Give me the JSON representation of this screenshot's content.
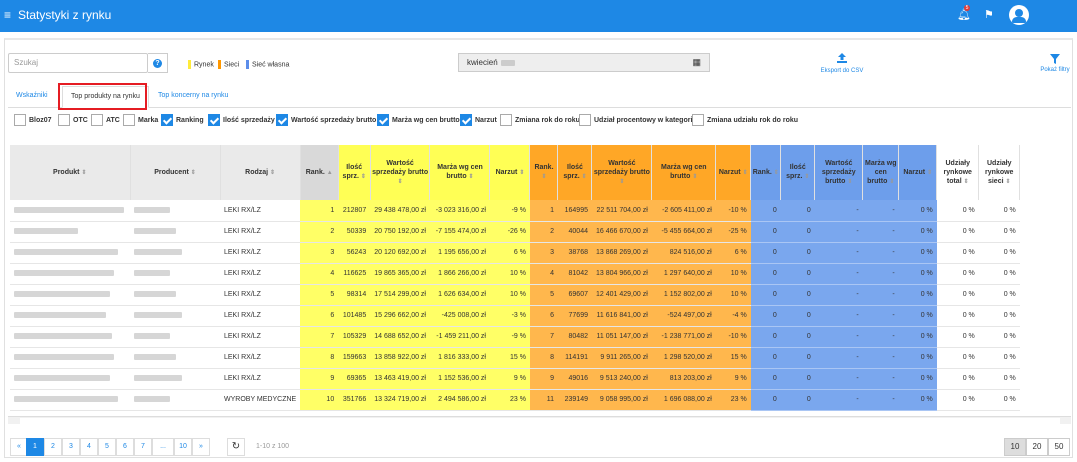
{
  "app": {
    "title": "Statystyki z rynku",
    "notif_count": "5"
  },
  "search": {
    "placeholder": "Szukaj",
    "help": "?"
  },
  "legend": [
    {
      "label": "Rynek",
      "color": "#ffeb3b"
    },
    {
      "label": "Sieci",
      "color": "#ff9800"
    },
    {
      "label": "Sieć własna",
      "color": "#5c8dea"
    }
  ],
  "date": {
    "value": "kwiecień"
  },
  "export": {
    "label": "Eksport do CSV"
  },
  "filter": {
    "label": "Pokaż filtry"
  },
  "tabs": [
    "Wskaźniki",
    "Top produkty na rynku",
    "Top koncerny na rynku"
  ],
  "checkboxes": [
    {
      "label": "Bloz07",
      "checked": false
    },
    {
      "label": "OTC",
      "checked": false
    },
    {
      "label": "ATC",
      "checked": false
    },
    {
      "label": "Marka",
      "checked": false
    },
    {
      "label": "Ranking",
      "checked": true
    },
    {
      "label": "Ilość sprzedaży",
      "checked": true
    },
    {
      "label": "Wartość sprzedaży brutto",
      "checked": true
    },
    {
      "label": "Marża wg cen brutto",
      "checked": true
    },
    {
      "label": "Narzut",
      "checked": true
    },
    {
      "label": "Zmiana rok do roku",
      "checked": false
    },
    {
      "label": "Udział procentowy w kategorii",
      "checked": false
    },
    {
      "label": "Zmiana udziału rok do roku",
      "checked": false
    }
  ],
  "table": {
    "headers": {
      "produkt": "Produkt",
      "producent": "Producent",
      "rodzaj": "Rodzaj",
      "rank": "Rank.",
      "ilosc": "Ilość sprz.",
      "wartosc": "Wartość sprzedaży brutto",
      "marza": "Marża wg cen brutto",
      "narzut": "Narzut",
      "marza_short": "Marża wg cen brutto",
      "udzial_total": "Udziały rynkowe total",
      "udzial_sieci": "Udziały rynkowe sieci"
    },
    "rows": [
      {
        "rodzaj": "LEKI RX/LZ",
        "r_rank": "1",
        "r_ilosc": "212807",
        "r_wart": "29 438 478,00 zł",
        "r_marza": "-3 023 316,00 zł",
        "r_narzut": "-9 %",
        "s_rank": "1",
        "s_ilosc": "164995",
        "s_wart": "22 511 704,00 zł",
        "s_marza": "-2 605 411,00 zł",
        "s_narzut": "-10 %",
        "w_rank": "0",
        "w_ilosc": "0",
        "w_wart": "-",
        "w_marza": "-",
        "w_narzut": "0 %",
        "u_total": "0 %",
        "u_sieci": "0 %"
      },
      {
        "rodzaj": "LEKI RX/LZ",
        "r_rank": "2",
        "r_ilosc": "50339",
        "r_wart": "20 750 192,00 zł",
        "r_marza": "-7 155 474,00 zł",
        "r_narzut": "-26 %",
        "s_rank": "2",
        "s_ilosc": "40044",
        "s_wart": "16 466 670,00 zł",
        "s_marza": "-5 455 664,00 zł",
        "s_narzut": "-25 %",
        "w_rank": "0",
        "w_ilosc": "0",
        "w_wart": "-",
        "w_marza": "-",
        "w_narzut": "0 %",
        "u_total": "0 %",
        "u_sieci": "0 %"
      },
      {
        "rodzaj": "LEKI RX/LZ",
        "r_rank": "3",
        "r_ilosc": "56243",
        "r_wart": "20 120 692,00 zł",
        "r_marza": "1 195 656,00 zł",
        "r_narzut": "6 %",
        "s_rank": "3",
        "s_ilosc": "38768",
        "s_wart": "13 868 269,00 zł",
        "s_marza": "824 516,00 zł",
        "s_narzut": "6 %",
        "w_rank": "0",
        "w_ilosc": "0",
        "w_wart": "-",
        "w_marza": "-",
        "w_narzut": "0 %",
        "u_total": "0 %",
        "u_sieci": "0 %"
      },
      {
        "rodzaj": "LEKI RX/LZ",
        "r_rank": "4",
        "r_ilosc": "116625",
        "r_wart": "19 865 365,00 zł",
        "r_marza": "1 866 266,00 zł",
        "r_narzut": "10 %",
        "s_rank": "4",
        "s_ilosc": "81042",
        "s_wart": "13 804 966,00 zł",
        "s_marza": "1 297 640,00 zł",
        "s_narzut": "10 %",
        "w_rank": "0",
        "w_ilosc": "0",
        "w_wart": "-",
        "w_marza": "-",
        "w_narzut": "0 %",
        "u_total": "0 %",
        "u_sieci": "0 %"
      },
      {
        "rodzaj": "LEKI RX/LZ",
        "r_rank": "5",
        "r_ilosc": "98314",
        "r_wart": "17 514 299,00 zł",
        "r_marza": "1 626 634,00 zł",
        "r_narzut": "10 %",
        "s_rank": "5",
        "s_ilosc": "69607",
        "s_wart": "12 401 429,00 zł",
        "s_marza": "1 152 802,00 zł",
        "s_narzut": "10 %",
        "w_rank": "0",
        "w_ilosc": "0",
        "w_wart": "-",
        "w_marza": "-",
        "w_narzut": "0 %",
        "u_total": "0 %",
        "u_sieci": "0 %"
      },
      {
        "rodzaj": "LEKI RX/LZ",
        "r_rank": "6",
        "r_ilosc": "101485",
        "r_wart": "15 296 662,00 zł",
        "r_marza": "-425 008,00 zł",
        "r_narzut": "-3 %",
        "s_rank": "6",
        "s_ilosc": "77699",
        "s_wart": "11 616 841,00 zł",
        "s_marza": "-524 497,00 zł",
        "s_narzut": "-4 %",
        "w_rank": "0",
        "w_ilosc": "0",
        "w_wart": "-",
        "w_marza": "-",
        "w_narzut": "0 %",
        "u_total": "0 %",
        "u_sieci": "0 %"
      },
      {
        "rodzaj": "LEKI RX/LZ",
        "r_rank": "7",
        "r_ilosc": "105329",
        "r_wart": "14 688 652,00 zł",
        "r_marza": "-1 459 211,00 zł",
        "r_narzut": "-9 %",
        "s_rank": "7",
        "s_ilosc": "80482",
        "s_wart": "11 051 147,00 zł",
        "s_marza": "-1 238 771,00 zł",
        "s_narzut": "-10 %",
        "w_rank": "0",
        "w_ilosc": "0",
        "w_wart": "-",
        "w_marza": "-",
        "w_narzut": "0 %",
        "u_total": "0 %",
        "u_sieci": "0 %"
      },
      {
        "rodzaj": "LEKI RX/LZ",
        "r_rank": "8",
        "r_ilosc": "159663",
        "r_wart": "13 858 922,00 zł",
        "r_marza": "1 816 333,00 zł",
        "r_narzut": "15 %",
        "s_rank": "8",
        "s_ilosc": "114191",
        "s_wart": "9 911 265,00 zł",
        "s_marza": "1 298 520,00 zł",
        "s_narzut": "15 %",
        "w_rank": "0",
        "w_ilosc": "0",
        "w_wart": "-",
        "w_marza": "-",
        "w_narzut": "0 %",
        "u_total": "0 %",
        "u_sieci": "0 %"
      },
      {
        "rodzaj": "LEKI RX/LZ",
        "r_rank": "9",
        "r_ilosc": "69365",
        "r_wart": "13 463 419,00 zł",
        "r_marza": "1 152 536,00 zł",
        "r_narzut": "9 %",
        "s_rank": "9",
        "s_ilosc": "49016",
        "s_wart": "9 513 240,00 zł",
        "s_marza": "813 203,00 zł",
        "s_narzut": "9 %",
        "w_rank": "0",
        "w_ilosc": "0",
        "w_wart": "-",
        "w_marza": "-",
        "w_narzut": "0 %",
        "u_total": "0 %",
        "u_sieci": "0 %"
      },
      {
        "rodzaj": "WYROBY MEDYCZNE",
        "r_rank": "10",
        "r_ilosc": "351766",
        "r_wart": "13 324 719,00 zł",
        "r_marza": "2 494 586,00 zł",
        "r_narzut": "23 %",
        "s_rank": "11",
        "s_ilosc": "239149",
        "s_wart": "9 058 995,00 zł",
        "s_marza": "1 696 088,00 zł",
        "s_narzut": "23 %",
        "w_rank": "0",
        "w_ilosc": "0",
        "w_wart": "-",
        "w_marza": "-",
        "w_narzut": "0 %",
        "u_total": "0 %",
        "u_sieci": "0 %"
      }
    ]
  },
  "pagination": {
    "prev": "«",
    "pages": [
      "1",
      "2",
      "3",
      "4",
      "5",
      "6",
      "7",
      "...",
      "10"
    ],
    "next": "»",
    "range": "1-10 z 100"
  },
  "page_sizes": [
    "10",
    "20",
    "50"
  ]
}
